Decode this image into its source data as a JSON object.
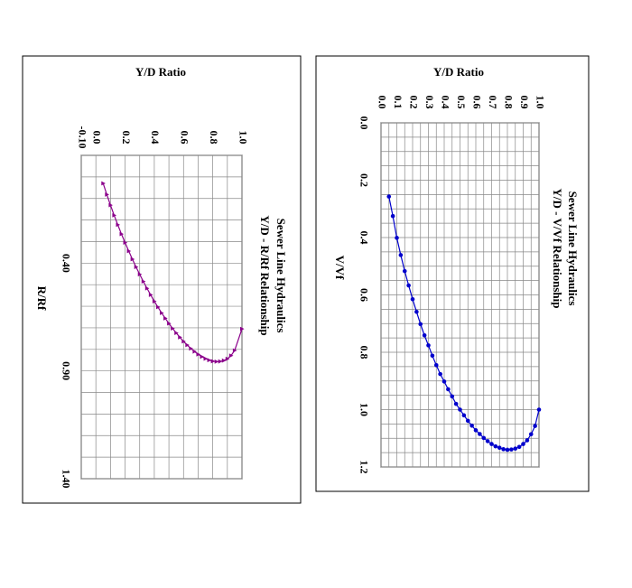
{
  "chart_data": [
    {
      "type": "line",
      "title": "Sewer Line Hydraulics",
      "subtitle": "Y/D - R/Rf Relationship",
      "xlabel": "Y/D Ratio",
      "ylabel": "R/Rf",
      "xlim": [
        -0.1,
        1.0
      ],
      "ylim": [
        -0.1,
        1.4
      ],
      "x_ticks": [
        "-0.10",
        "0.0",
        "0.2",
        "0.4",
        "0.6",
        "0.8",
        "1.0"
      ],
      "x_tick_values": [
        -0.1,
        0.0,
        0.2,
        0.4,
        0.6,
        0.8,
        1.0
      ],
      "y_ticks": [
        "0.40",
        "0.90",
        "1.40"
      ],
      "y_tick_values": [
        0.4,
        0.9,
        1.4
      ],
      "grid": true,
      "color": "#8b008b",
      "marker": "triangle",
      "series": [
        {
          "x": [
            0.05,
            0.075,
            0.1,
            0.125,
            0.15,
            0.175,
            0.2,
            0.225,
            0.25,
            0.275,
            0.3,
            0.325,
            0.35,
            0.375,
            0.4,
            0.425,
            0.45,
            0.475,
            0.5,
            0.525,
            0.55,
            0.575,
            0.6,
            0.625,
            0.65,
            0.675,
            0.7,
            0.725,
            0.75,
            0.775,
            0.8,
            0.825,
            0.85,
            0.875,
            0.9,
            0.925,
            0.95,
            1.0
          ],
          "y": [
            0.03,
            0.082,
            0.131,
            0.178,
            0.222,
            0.265,
            0.305,
            0.344,
            0.382,
            0.418,
            0.452,
            0.485,
            0.517,
            0.547,
            0.577,
            0.604,
            0.631,
            0.656,
            0.68,
            0.703,
            0.724,
            0.744,
            0.763,
            0.78,
            0.796,
            0.81,
            0.823,
            0.834,
            0.843,
            0.85,
            0.855,
            0.857,
            0.856,
            0.852,
            0.844,
            0.829,
            0.805,
            0.705
          ]
        }
      ]
    },
    {
      "type": "line",
      "title": "Sewer Line Hydraulics",
      "subtitle": "Y/D - V/Vf Relationship",
      "xlabel": "Y/D Ratio",
      "ylabel": "V/Vf",
      "xlim": [
        0.0,
        1.0
      ],
      "ylim": [
        0.0,
        1.2
      ],
      "x_ticks": [
        "0.0",
        "0.1",
        "0.2",
        "0.3",
        "0.4",
        "0.5",
        "0.6",
        "0.7",
        "0.8",
        "0.9",
        "1.0"
      ],
      "x_tick_values": [
        0.0,
        0.1,
        0.2,
        0.3,
        0.4,
        0.5,
        0.6,
        0.7,
        0.8,
        0.9,
        1.0
      ],
      "y_ticks": [
        "0.0",
        "0.2",
        "0.4",
        "0.6",
        "0.8",
        "1.0",
        "1.2"
      ],
      "y_tick_values": [
        0.0,
        0.2,
        0.4,
        0.6,
        0.8,
        1.0,
        1.2
      ],
      "grid": true,
      "color": "#0000cc",
      "marker": "circle",
      "series": [
        {
          "x": [
            0.05,
            0.075,
            0.1,
            0.125,
            0.15,
            0.175,
            0.2,
            0.225,
            0.25,
            0.275,
            0.3,
            0.325,
            0.35,
            0.375,
            0.4,
            0.425,
            0.45,
            0.475,
            0.5,
            0.525,
            0.55,
            0.575,
            0.6,
            0.625,
            0.65,
            0.675,
            0.7,
            0.725,
            0.75,
            0.775,
            0.8,
            0.825,
            0.85,
            0.875,
            0.9,
            0.925,
            0.95,
            0.975,
            1.0
          ],
          "y": [
            0.257,
            0.325,
            0.401,
            0.461,
            0.517,
            0.567,
            0.615,
            0.659,
            0.702,
            0.741,
            0.776,
            0.812,
            0.845,
            0.876,
            0.902,
            0.929,
            0.954,
            0.98,
            1.0,
            1.02,
            1.039,
            1.056,
            1.072,
            1.085,
            1.099,
            1.11,
            1.12,
            1.128,
            1.133,
            1.138,
            1.14,
            1.139,
            1.136,
            1.13,
            1.12,
            1.107,
            1.086,
            1.057,
            1.0
          ]
        }
      ]
    }
  ]
}
